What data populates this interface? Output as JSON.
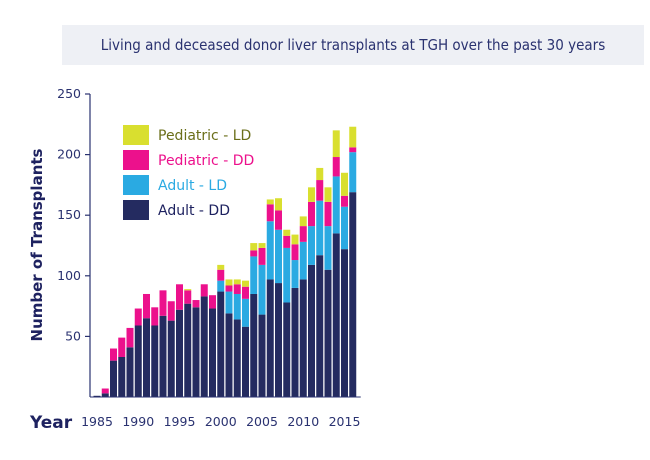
{
  "chart_data": {
    "type": "bar",
    "stacked": true,
    "title": "Living and deceased donor liver transplants at TGH over the past 30 years",
    "xlabel": "Year",
    "ylabel": "Number of Transplants",
    "ylim": [
      0,
      250
    ],
    "yticks": [
      50,
      100,
      150,
      200,
      250
    ],
    "xtick_labels": [
      "1985",
      "1990",
      "1995",
      "2000",
      "2005",
      "2010",
      "2015"
    ],
    "categories": [
      1985,
      1986,
      1987,
      1988,
      1989,
      1990,
      1991,
      1992,
      1993,
      1994,
      1995,
      1996,
      1997,
      1998,
      1999,
      2000,
      2001,
      2002,
      2003,
      2004,
      2005,
      2006,
      2007,
      2008,
      2009,
      2010,
      2011,
      2012,
      2013,
      2014,
      2015,
      2016
    ],
    "series": [
      {
        "name": "Adult - DD",
        "color": "#242b60",
        "values": [
          1,
          3,
          30,
          33,
          41,
          59,
          65,
          59,
          67,
          63,
          72,
          77,
          74,
          83,
          73,
          87,
          69,
          64,
          58,
          85,
          68,
          97,
          94,
          78,
          90,
          97,
          109,
          117,
          105,
          135,
          122,
          169
        ]
      },
      {
        "name": "Adult - LD",
        "color": "#2aaae2",
        "values": [
          0,
          0,
          0,
          0,
          0,
          0,
          0,
          0,
          0,
          0,
          0,
          0,
          0,
          0,
          0,
          9,
          18,
          21,
          23,
          31,
          41,
          48,
          44,
          45,
          23,
          31,
          32,
          45,
          36,
          47,
          35,
          33
        ]
      },
      {
        "name": "Pediatric - DD",
        "color": "#ec118c",
        "values": [
          0,
          4,
          10,
          16,
          16,
          14,
          20,
          15,
          21,
          16,
          21,
          11,
          6,
          10,
          11,
          9,
          5,
          8,
          10,
          5,
          14,
          14,
          16,
          10,
          13,
          13,
          20,
          17,
          20,
          16,
          9,
          4
        ]
      },
      {
        "name": "Pediatric - LD",
        "color": "#d9df2f",
        "values": [
          0,
          0,
          0,
          0,
          0,
          0,
          0,
          0,
          0,
          0,
          0,
          1,
          0,
          0,
          0,
          4,
          5,
          4,
          5,
          6,
          4,
          4,
          10,
          5,
          8,
          8,
          12,
          10,
          12,
          22,
          19,
          17
        ]
      }
    ],
    "legend": [
      {
        "label": "Pediatric - LD",
        "color": "#d9df2f",
        "text_color": "#6b6f1a"
      },
      {
        "label": "Pediatric - DD",
        "color": "#ec118c",
        "text_color": "#ec118c"
      },
      {
        "label": "Adult - LD",
        "color": "#2aaae2",
        "text_color": "#2aaae2"
      },
      {
        "label": "Adult - DD",
        "color": "#242b60",
        "text_color": "#1e2260"
      }
    ]
  }
}
